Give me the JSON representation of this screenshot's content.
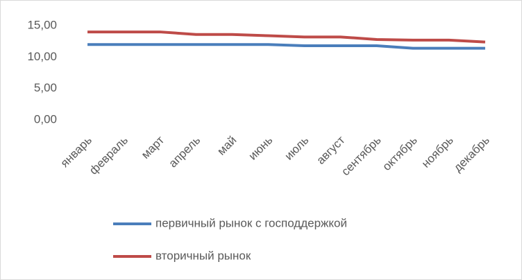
{
  "chart_data": {
    "type": "line",
    "categories": [
      "январь",
      "февраль",
      "март",
      "апрель",
      "май",
      "июнь",
      "июль",
      "август",
      "сентябрь",
      "октябрь",
      "ноябрь",
      "декабрь"
    ],
    "series": [
      {
        "name": "первичный рынок с господдержкой",
        "color": "#4a7ebb",
        "values": [
          12,
          12,
          12,
          12,
          12,
          12,
          11.8,
          11.8,
          11.8,
          11.4,
          11.4,
          11.4
        ]
      },
      {
        "name": "вторичный рынок",
        "color": "#be4b48",
        "values": [
          14,
          14,
          14,
          13.6,
          13.6,
          13.4,
          13.2,
          13.2,
          12.8,
          12.7,
          12.7,
          12.4
        ]
      }
    ],
    "ylim": [
      0,
      15
    ],
    "yticks": [
      {
        "value": 0,
        "label": "0,00"
      },
      {
        "value": 5,
        "label": "5,00"
      },
      {
        "value": 10,
        "label": "10,00"
      },
      {
        "value": 15,
        "label": "15,00"
      }
    ]
  }
}
